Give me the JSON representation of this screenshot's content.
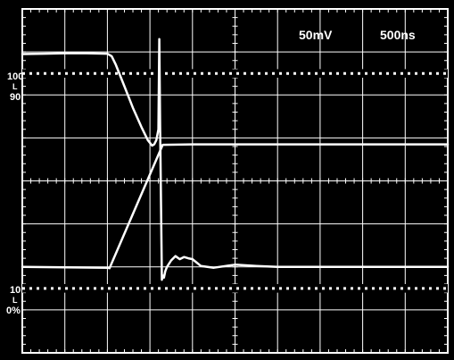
{
  "readouts": {
    "volts_per_div": "50mV",
    "time_per_div": "500ns"
  },
  "reference_markers": {
    "top_label": "100",
    "top_l": "L",
    "top_sub": "90",
    "bottom_label": "10",
    "bottom_l": "L",
    "bottom_sub": "0%"
  },
  "colors": {
    "screen_background": "#000000",
    "trace": "#ffffff",
    "graticule": "#ffffff"
  },
  "chart_data": {
    "type": "line",
    "title": "",
    "xlabel": "",
    "ylabel": "",
    "x_divisions": 10,
    "y_divisions": 8,
    "xlim": [
      0,
      10
    ],
    "ylim": [
      -4,
      4
    ],
    "grid": true,
    "legend": "none",
    "reference_dotted_lines_y": [
      2.5,
      -2.5
    ],
    "series": [
      {
        "points": [
          [
            0.0,
            2.95
          ],
          [
            0.5,
            2.96
          ],
          [
            1.0,
            2.97
          ],
          [
            1.5,
            2.97
          ],
          [
            2.0,
            2.96
          ],
          [
            2.1,
            2.9
          ],
          [
            2.2,
            2.7
          ],
          [
            2.4,
            2.2
          ],
          [
            2.6,
            1.7
          ],
          [
            2.8,
            1.25
          ],
          [
            2.95,
            0.95
          ],
          [
            3.05,
            0.82
          ],
          [
            3.1,
            0.85
          ],
          [
            3.15,
            0.95
          ],
          [
            3.2,
            1.2
          ],
          [
            3.22,
            3.3
          ],
          [
            3.24,
            1.3
          ],
          [
            3.26,
            -0.5
          ],
          [
            3.28,
            -2.3
          ],
          [
            3.3,
            -2.2
          ],
          [
            3.33,
            -2.25
          ],
          [
            3.36,
            -2.1
          ],
          [
            3.4,
            -2.0
          ],
          [
            3.5,
            -1.85
          ],
          [
            3.6,
            -1.75
          ],
          [
            3.7,
            -1.82
          ],
          [
            3.8,
            -1.77
          ],
          [
            3.9,
            -1.8
          ],
          [
            4.0,
            -1.82
          ],
          [
            4.2,
            -1.98
          ],
          [
            4.5,
            -2.02
          ],
          [
            5.0,
            -1.95
          ],
          [
            5.5,
            -1.98
          ],
          [
            6.0,
            -2.0
          ],
          [
            7.0,
            -2.0
          ],
          [
            8.0,
            -2.0
          ],
          [
            9.0,
            -2.0
          ],
          [
            10.0,
            -2.0
          ]
        ]
      },
      {
        "points": [
          [
            0.0,
            -2.0
          ],
          [
            1.0,
            -2.01
          ],
          [
            2.0,
            -2.02
          ],
          [
            2.05,
            -2.03
          ],
          [
            3.3,
            0.84
          ],
          [
            4.0,
            0.85
          ],
          [
            6.0,
            0.85
          ],
          [
            8.0,
            0.85
          ],
          [
            10.0,
            0.85
          ]
        ]
      }
    ]
  }
}
